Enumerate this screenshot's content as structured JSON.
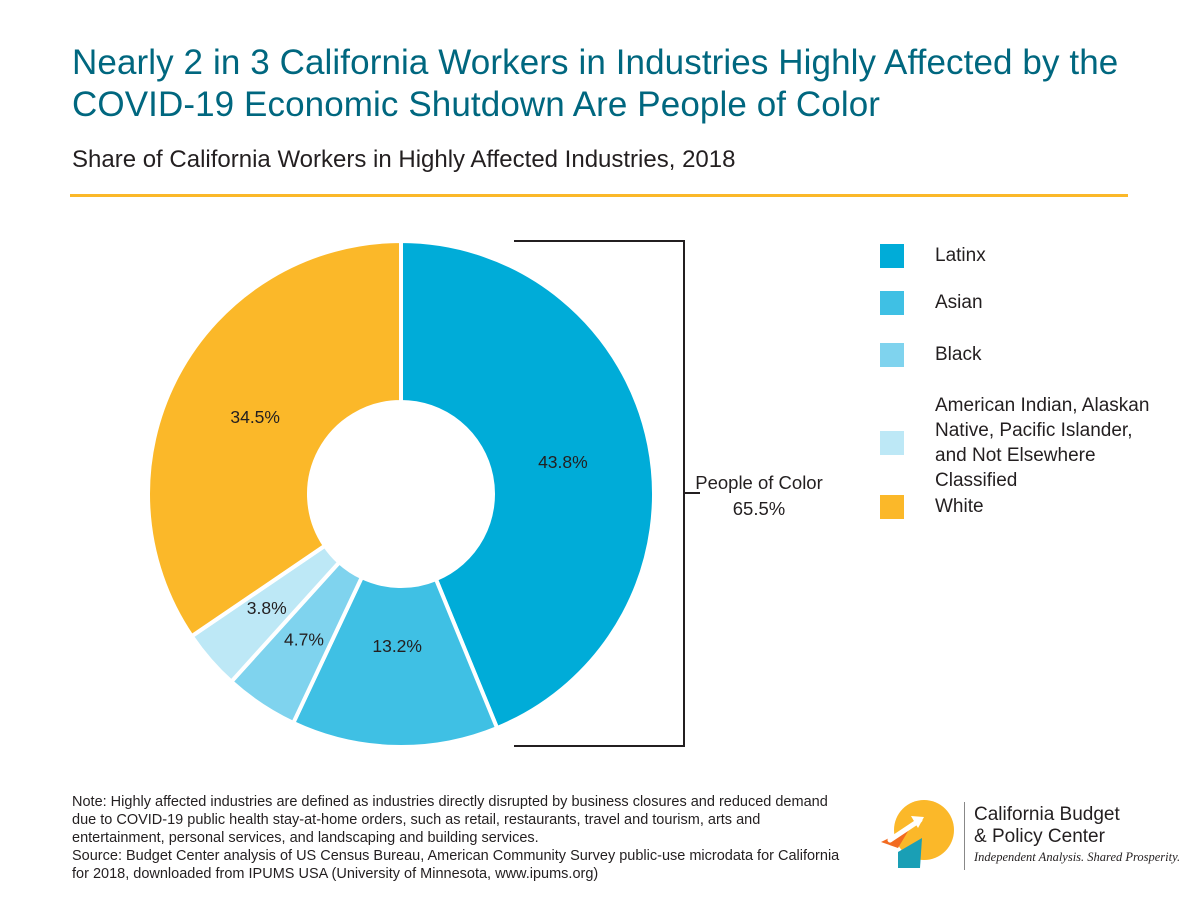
{
  "header": {
    "title": "Nearly 2 in 3 California Workers in Industries Highly Affected by the COVID-19 Economic Shutdown Are People of Color",
    "subtitle": "Share of California Workers in Highly Affected Industries, 2018"
  },
  "chart_data": {
    "type": "pie",
    "style": "donut",
    "title": "Share of California Workers in Highly Affected Industries, 2018",
    "categories": [
      "Latinx",
      "Asian",
      "Black",
      "American Indian, Alaskan Native, Pacific Islander, and Not Elsewhere Classified",
      "White"
    ],
    "values": [
      43.8,
      13.2,
      4.7,
      3.8,
      34.5
    ],
    "data_labels": [
      "43.8%",
      "13.2%",
      "4.7%",
      "3.8%",
      "34.5%"
    ],
    "colors": [
      "#00acd8",
      "#3fc0e4",
      "#7fd3ee",
      "#bde8f6",
      "#fbb829"
    ],
    "unit": "%",
    "legend_position": "right",
    "annotation": {
      "line1": "People of Color",
      "line2": "65.5%"
    }
  },
  "legend": {
    "items": [
      {
        "label": "Latinx",
        "color": "#00acd8"
      },
      {
        "label": "Asian",
        "color": "#3fc0e4"
      },
      {
        "label": "Black",
        "color": "#7fd3ee"
      },
      {
        "label": "American Indian, Alaskan Native, Pacific Islander, and Not Elsewhere Classified",
        "color": "#bde8f6"
      },
      {
        "label": "White",
        "color": "#fbb829"
      }
    ]
  },
  "note": {
    "text": "Note: Highly affected industries are defined as industries directly disrupted by business closures and reduced demand due to COVID-19 public health stay-at-home orders, such as retail, restaurants, travel and tourism, arts and entertainment, personal services, and landscaping and building services.",
    "source": "Source: Budget Center analysis of US Census Bureau, American Community Survey public-use microdata for California for 2018, downloaded from IPUMS USA (University of Minnesota, www.ipums.org)"
  },
  "logo": {
    "name_line1": "California Budget",
    "name_line2": "& Policy Center",
    "tagline": "Independent Analysis. Shared Prosperity."
  }
}
